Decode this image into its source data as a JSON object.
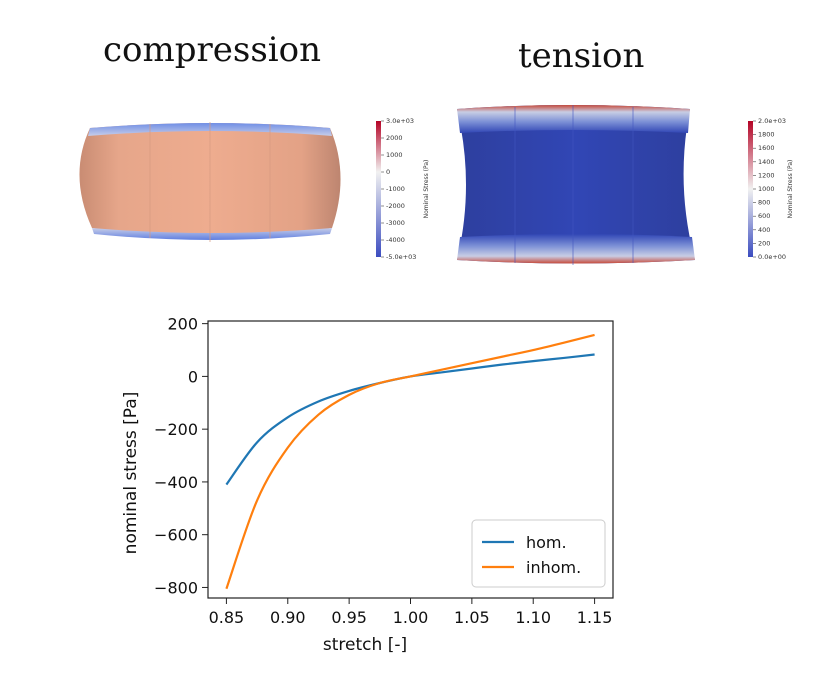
{
  "headings": {
    "compression": "compression",
    "tension": "tension"
  },
  "colorbars": {
    "compression": {
      "title": "Nominal Stress (Pa)",
      "ticks": [
        "3.0e+03",
        "2000",
        "1000",
        "0",
        "-1000",
        "-2000",
        "-3000",
        "-4000",
        "-5.0e+03"
      ],
      "range": [
        -5000,
        3000
      ],
      "colors": [
        "#b40426",
        "#f1f1f1",
        "#3b4cc0"
      ]
    },
    "tension": {
      "title": "Nominal Stress (Pa)",
      "ticks": [
        "2.0e+03",
        "1800",
        "1600",
        "1400",
        "1200",
        "1000",
        "800",
        "600",
        "400",
        "200",
        "0.0e+00"
      ],
      "range": [
        0,
        2000
      ],
      "colors": [
        "#b40426",
        "#f1f1f1",
        "#3b4cc0"
      ]
    }
  },
  "chart_data": {
    "type": "line",
    "title": "",
    "xlabel": "stretch [-]",
    "ylabel": "nominal stress [Pa]",
    "xlim": [
      0.835,
      1.165
    ],
    "ylim": [
      -840,
      210
    ],
    "xticks": [
      "0.85",
      "0.90",
      "0.95",
      "1.00",
      "1.05",
      "1.10",
      "1.15"
    ],
    "yticks": [
      "200",
      "0",
      "−200",
      "−400",
      "−600",
      "−800"
    ],
    "legend_position": "bottom-right",
    "grid": false,
    "x": [
      0.85,
      0.875,
      0.9,
      0.925,
      0.95,
      0.975,
      1.0,
      1.025,
      1.05,
      1.075,
      1.1,
      1.125,
      1.15
    ],
    "series": [
      {
        "name": "hom.",
        "color": "#1f77b4",
        "values": [
          -410,
          -250,
          -155,
          -95,
          -55,
          -25,
          0,
          15,
          30,
          45,
          58,
          70,
          83
        ]
      },
      {
        "name": "inhom.",
        "color": "#ff7f0e",
        "values": [
          -805,
          -470,
          -270,
          -145,
          -70,
          -25,
          0,
          25,
          50,
          75,
          100,
          128,
          157
        ]
      }
    ]
  }
}
